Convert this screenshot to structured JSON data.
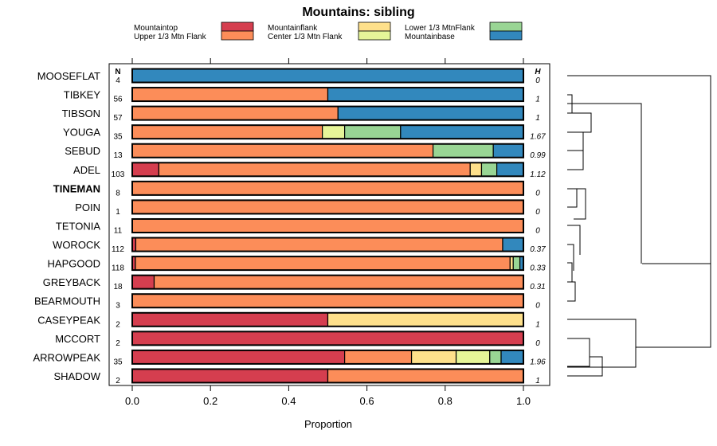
{
  "chart_data": {
    "type": "bar",
    "orientation": "horizontal",
    "stacked": true,
    "title": "Mountains: sibling",
    "xlabel": "Proportion",
    "xlim": [
      0,
      1
    ],
    "xticks": [
      "0.0",
      "0.2",
      "0.4",
      "0.6",
      "0.8",
      "1.0"
    ],
    "n_header": "N",
    "h_header": "H",
    "series_names": [
      "Mountaintop",
      "Upper 1/3 Mtn Flank",
      "Mountainflank",
      "Center 1/3 Mtn Flank",
      "Lower 1/3 MtnFlank",
      "Mountainbase"
    ],
    "series_colors": [
      "#d53e4f",
      "#fc8d59",
      "#fee08b",
      "#e6f598",
      "#99d594",
      "#3288bd"
    ],
    "highlight_row": "TINEMAN",
    "rows": [
      {
        "label": "MOOSEFLAT",
        "n": "4",
        "h": "0",
        "values": [
          0,
          0,
          0,
          0,
          0,
          1
        ]
      },
      {
        "label": "TIBKEY",
        "n": "56",
        "h": "1",
        "values": [
          0,
          0.5,
          0,
          0,
          0,
          0.5
        ]
      },
      {
        "label": "TIBSON",
        "n": "57",
        "h": "1",
        "values": [
          0,
          0.526,
          0,
          0,
          0,
          0.474
        ]
      },
      {
        "label": "YOUGA",
        "n": "35",
        "h": "1.67",
        "values": [
          0,
          0.486,
          0,
          0.057,
          0.143,
          0.314
        ]
      },
      {
        "label": "SEBUD",
        "n": "13",
        "h": "0.99",
        "values": [
          0,
          0.769,
          0,
          0,
          0.154,
          0.077
        ]
      },
      {
        "label": "ADEL",
        "n": "103",
        "h": "1.12",
        "values": [
          0.068,
          0.796,
          0.029,
          0,
          0.039,
          0.068
        ]
      },
      {
        "label": "TINEMAN",
        "n": "8",
        "h": "0",
        "values": [
          0,
          1,
          0,
          0,
          0,
          0
        ]
      },
      {
        "label": "POIN",
        "n": "1",
        "h": "0",
        "values": [
          0,
          1,
          0,
          0,
          0,
          0
        ]
      },
      {
        "label": "TETONIA",
        "n": "11",
        "h": "0",
        "values": [
          0,
          1,
          0,
          0,
          0,
          0
        ]
      },
      {
        "label": "WOROCK",
        "n": "112",
        "h": "0.37",
        "values": [
          0.009,
          0.938,
          0,
          0,
          0,
          0.053
        ]
      },
      {
        "label": "HAPGOOD",
        "n": "118",
        "h": "0.33",
        "values": [
          0.008,
          0.958,
          0.008,
          0,
          0.017,
          0.009
        ]
      },
      {
        "label": "GREYBACK",
        "n": "18",
        "h": "0.31",
        "values": [
          0.056,
          0.944,
          0,
          0,
          0,
          0
        ]
      },
      {
        "label": "BEARMOUTH",
        "n": "3",
        "h": "0",
        "values": [
          0,
          1,
          0,
          0,
          0,
          0
        ]
      },
      {
        "label": "CASEYPEAK",
        "n": "2",
        "h": "1",
        "values": [
          0.5,
          0,
          0.5,
          0,
          0,
          0
        ]
      },
      {
        "label": "MCCORT",
        "n": "2",
        "h": "0",
        "values": [
          1,
          0,
          0,
          0,
          0,
          0
        ]
      },
      {
        "label": "ARROWPEAK",
        "n": "35",
        "h": "1.96",
        "values": [
          0.543,
          0.171,
          0.114,
          0.086,
          0.029,
          0.057
        ]
      },
      {
        "label": "SHADOW",
        "n": "2",
        "h": "1",
        "values": [
          0.5,
          0.5,
          0,
          0,
          0,
          0
        ]
      }
    ]
  }
}
